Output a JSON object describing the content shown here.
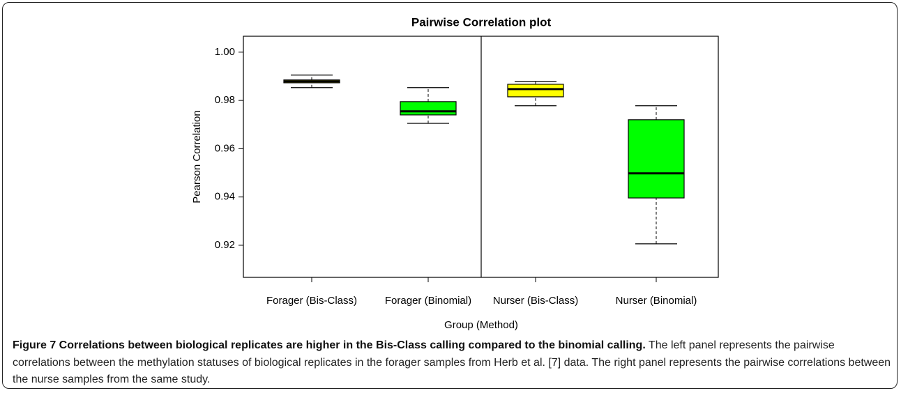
{
  "chart_data": {
    "type": "box",
    "title": "Pairwise Correlation plot",
    "x_label": "Group (Method)",
    "y_label": "Pearson Correlation",
    "categories": [
      "Forager (Bis-Class)",
      "Forager (Binomial)",
      "Nurser (Bis-Class)",
      "Nurser (Binomial)"
    ],
    "boxes": [
      {
        "whislo": 0.9853,
        "q1": 0.9873,
        "med": 0.9879,
        "q3": 0.9885,
        "whishi": 0.9905,
        "color": "#ffff00"
      },
      {
        "whislo": 0.9705,
        "q1": 0.974,
        "med": 0.9755,
        "q3": 0.9795,
        "whishi": 0.9853,
        "color": "#00ff00"
      },
      {
        "whislo": 0.9778,
        "q1": 0.9815,
        "med": 0.9847,
        "q3": 0.9867,
        "whishi": 0.9879,
        "color": "#ffff00"
      },
      {
        "whislo": 0.9206,
        "q1": 0.9396,
        "med": 0.9498,
        "q3": 0.972,
        "whishi": 0.9778,
        "color": "#00ff00"
      }
    ],
    "ylim": [
      0.9067,
      1.0066
    ],
    "yticks": [
      0.92,
      0.94,
      0.96,
      0.98,
      {
        "value": 1,
        "label": "1.00"
      }
    ]
  },
  "caption": {
    "title": "Figure 7 Correlations between biological replicates are higher in the Bis-Class calling compared to the binomial calling.",
    "text": "The left panel represents the pairwise correlations between the methylation statuses of biological replicates in the forager samples from Herb et al. [7] data. The right panel represents the pairwise correlations between the nurse samples from the same study."
  }
}
